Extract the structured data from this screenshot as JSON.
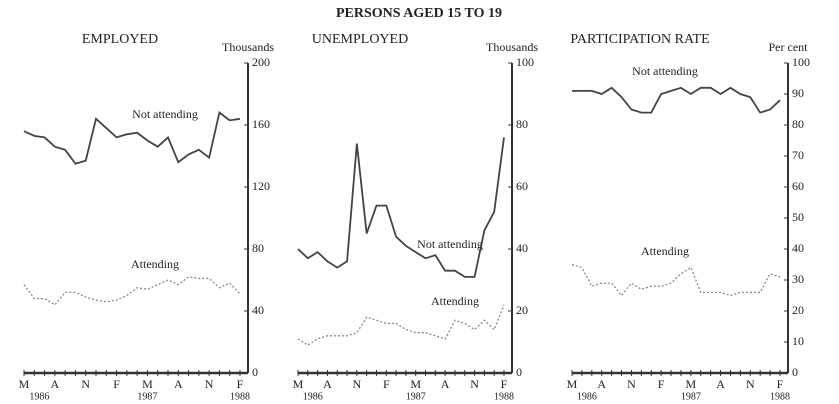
{
  "title": "PERSONS AGED 15 TO 19",
  "chart_data": [
    {
      "type": "line",
      "title": "EMPLOYED",
      "ylabel": "Thousands",
      "categories": [
        "M",
        null,
        null,
        "A",
        null,
        null,
        "N",
        null,
        null,
        "F",
        null,
        null,
        "M",
        null,
        null,
        "A",
        null,
        null,
        "N",
        null,
        null,
        "F"
      ],
      "years": [
        "1986",
        "1987",
        "1988"
      ],
      "ylim": [
        0,
        200
      ],
      "yticks": [
        0,
        40,
        80,
        120,
        160,
        200
      ],
      "series": [
        {
          "name": "Not attending",
          "color": "#444444",
          "style": "solid",
          "values": [
            156,
            153,
            152,
            146,
            144,
            135,
            137,
            164,
            158,
            152,
            154,
            155,
            150,
            146,
            152,
            136,
            141,
            144,
            139,
            168,
            163,
            164
          ]
        },
        {
          "name": "Attending",
          "color": "#888888",
          "style": "dotted",
          "values": [
            57,
            48,
            48,
            44,
            52,
            52,
            49,
            47,
            46,
            47,
            50,
            55,
            54,
            57,
            60,
            57,
            62,
            61,
            61,
            55,
            58,
            51
          ]
        }
      ]
    },
    {
      "type": "line",
      "title": "UNEMPLOYED",
      "ylabel": "Thousands",
      "categories": [
        "M",
        null,
        null,
        "A",
        null,
        null,
        "N",
        null,
        null,
        "F",
        null,
        null,
        "M",
        null,
        null,
        "A",
        null,
        null,
        "N",
        null,
        null,
        "F"
      ],
      "years": [
        "1986",
        "1987",
        "1988"
      ],
      "ylim": [
        0,
        100
      ],
      "yticks": [
        0,
        20,
        40,
        60,
        80,
        100
      ],
      "series": [
        {
          "name": "Not attending",
          "color": "#444444",
          "style": "solid",
          "values": [
            40,
            37,
            39,
            36,
            34,
            36,
            74,
            45,
            54,
            54,
            44,
            41,
            39,
            37,
            38,
            33,
            33,
            31,
            31,
            46,
            52,
            76
          ]
        },
        {
          "name": "Attending",
          "color": "#888888",
          "style": "dotted",
          "values": [
            11,
            9,
            11,
            12,
            12,
            12,
            13,
            18,
            17,
            16,
            16,
            14,
            13,
            13,
            12,
            11,
            17,
            16,
            14,
            17,
            14,
            22
          ]
        }
      ]
    },
    {
      "type": "line",
      "title": "PARTICIPATION RATE",
      "ylabel": "Per cent",
      "categories": [
        "M",
        null,
        null,
        "A",
        null,
        null,
        "N",
        null,
        null,
        "F",
        null,
        null,
        "M",
        null,
        null,
        "A",
        null,
        null,
        "N",
        null,
        null,
        "F"
      ],
      "years": [
        "1986",
        "1987",
        "1988"
      ],
      "ylim": [
        0,
        100
      ],
      "yticks": [
        0,
        10,
        20,
        30,
        40,
        50,
        60,
        70,
        80,
        90,
        100
      ],
      "series": [
        {
          "name": "Not attending",
          "color": "#444444",
          "style": "solid",
          "values": [
            91,
            91,
            91,
            90,
            92,
            89,
            85,
            84,
            84,
            90,
            91,
            92,
            90,
            92,
            92,
            90,
            92,
            90,
            89,
            84,
            85,
            88
          ]
        },
        {
          "name": "Attending",
          "color": "#888888",
          "style": "dotted",
          "values": [
            35,
            34,
            28,
            29,
            29,
            25,
            29,
            27,
            28,
            28,
            29,
            32,
            34,
            26,
            26,
            26,
            25,
            26,
            26,
            26,
            32,
            31
          ]
        }
      ]
    }
  ]
}
